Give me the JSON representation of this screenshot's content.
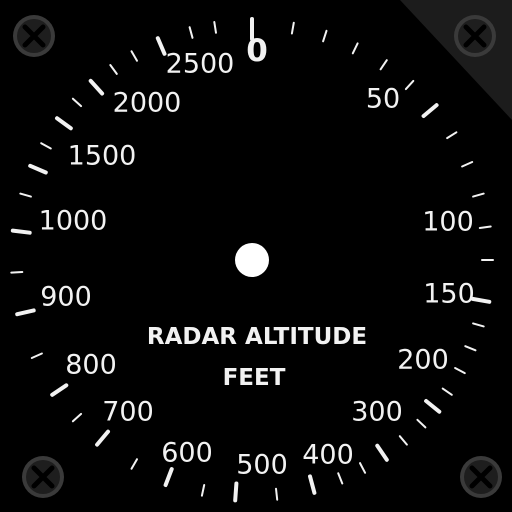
{
  "instrument": {
    "title_line1": "RADAR ALTITUDE",
    "title_line2": "FEET",
    "scale_labels": {
      "v0": "0",
      "v50": "50",
      "v100": "100",
      "v150": "150",
      "v200": "200",
      "v300": "300",
      "v400": "400",
      "v500": "500",
      "v600": "600",
      "v700": "700",
      "v800": "800",
      "v900": "900",
      "v1000": "1000",
      "v1500": "1500",
      "v2000": "2000",
      "v2500": "2500"
    },
    "screws": [
      "screw-top-left",
      "screw-top-right",
      "screw-bottom-left",
      "screw-bottom-right"
    ],
    "colors": {
      "face": "#000000",
      "marking": "#f2f2f2",
      "screw_head": "#1e1e1e",
      "screw_rim": "#3a3a3a"
    }
  }
}
